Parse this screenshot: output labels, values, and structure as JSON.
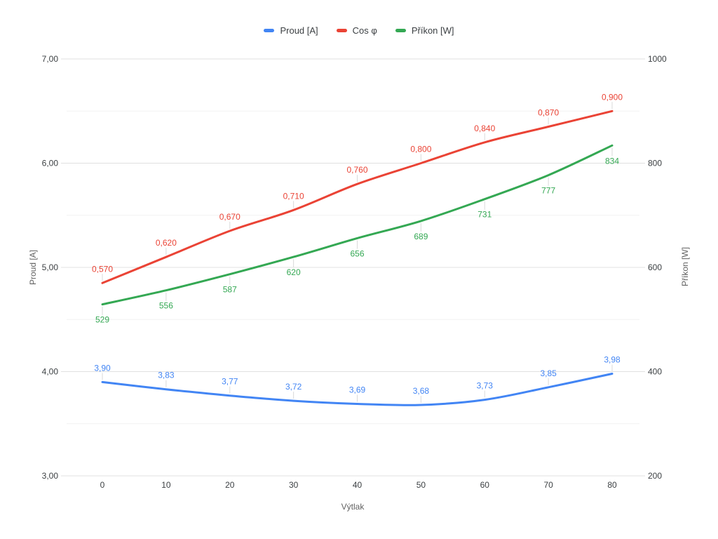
{
  "chart_data": {
    "type": "line",
    "title": "",
    "legend_position": "top",
    "x_axis": {
      "title": "Výtlak",
      "values": [
        0,
        10,
        20,
        30,
        40,
        50,
        60,
        70,
        80
      ],
      "tick_labels": [
        "0",
        "10",
        "20",
        "30",
        "40",
        "50",
        "60",
        "70",
        "80"
      ]
    },
    "left_axis": {
      "title": "Proud [A]",
      "min": 3,
      "max": 7,
      "tick_values": [
        7,
        6,
        5,
        4,
        3
      ],
      "tick_labels": [
        "7,00",
        "6,00",
        "5,00",
        "4,00",
        "3,00"
      ],
      "minor_step": 0.5
    },
    "right_axis": {
      "title": "Příkon [W]",
      "min": 200,
      "max": 1000,
      "tick_values": [
        1000,
        800,
        600,
        400,
        200
      ],
      "tick_labels": [
        "1000",
        "800",
        "600",
        "400",
        "200"
      ],
      "minor_step": 100
    },
    "series": [
      {
        "name": "Proud [A]",
        "color": "#4285F4",
        "axis": "left",
        "values": [
          3.9,
          3.83,
          3.77,
          3.72,
          3.69,
          3.68,
          3.73,
          3.85,
          3.98
        ],
        "labels": [
          "3,90",
          "3,83",
          "3,77",
          "3,72",
          "3,69",
          "3,68",
          "3,73",
          "3,85",
          "3,98"
        ],
        "label_position": "above"
      },
      {
        "name": "Cos φ",
        "color": "#EA4335",
        "axis": "hidden",
        "hidden_axis_range": [
          0.2,
          1.0
        ],
        "values": [
          0.57,
          0.62,
          0.67,
          0.71,
          0.76,
          0.8,
          0.84,
          0.87,
          0.9
        ],
        "labels": [
          "0,570",
          "0,620",
          "0,670",
          "0,710",
          "0,760",
          "0,800",
          "0,840",
          "0,870",
          "0,900"
        ],
        "label_position": "above"
      },
      {
        "name": "Příkon [W]",
        "color": "#34A853",
        "axis": "right",
        "values": [
          529,
          556,
          587,
          620,
          656,
          689,
          731,
          777,
          834
        ],
        "labels": [
          "529",
          "556",
          "587",
          "620",
          "656",
          "689",
          "731",
          "777",
          "834"
        ],
        "label_position": "below"
      }
    ],
    "style": {
      "grid_major_color": "#e0e0e0",
      "grid_minor_color": "#f2f2f2",
      "leader_line_color": "#dadada",
      "tick_text_color": "#3c4043",
      "axis_title_color": "#616161",
      "background": "#ffffff",
      "line_width": 3
    }
  }
}
